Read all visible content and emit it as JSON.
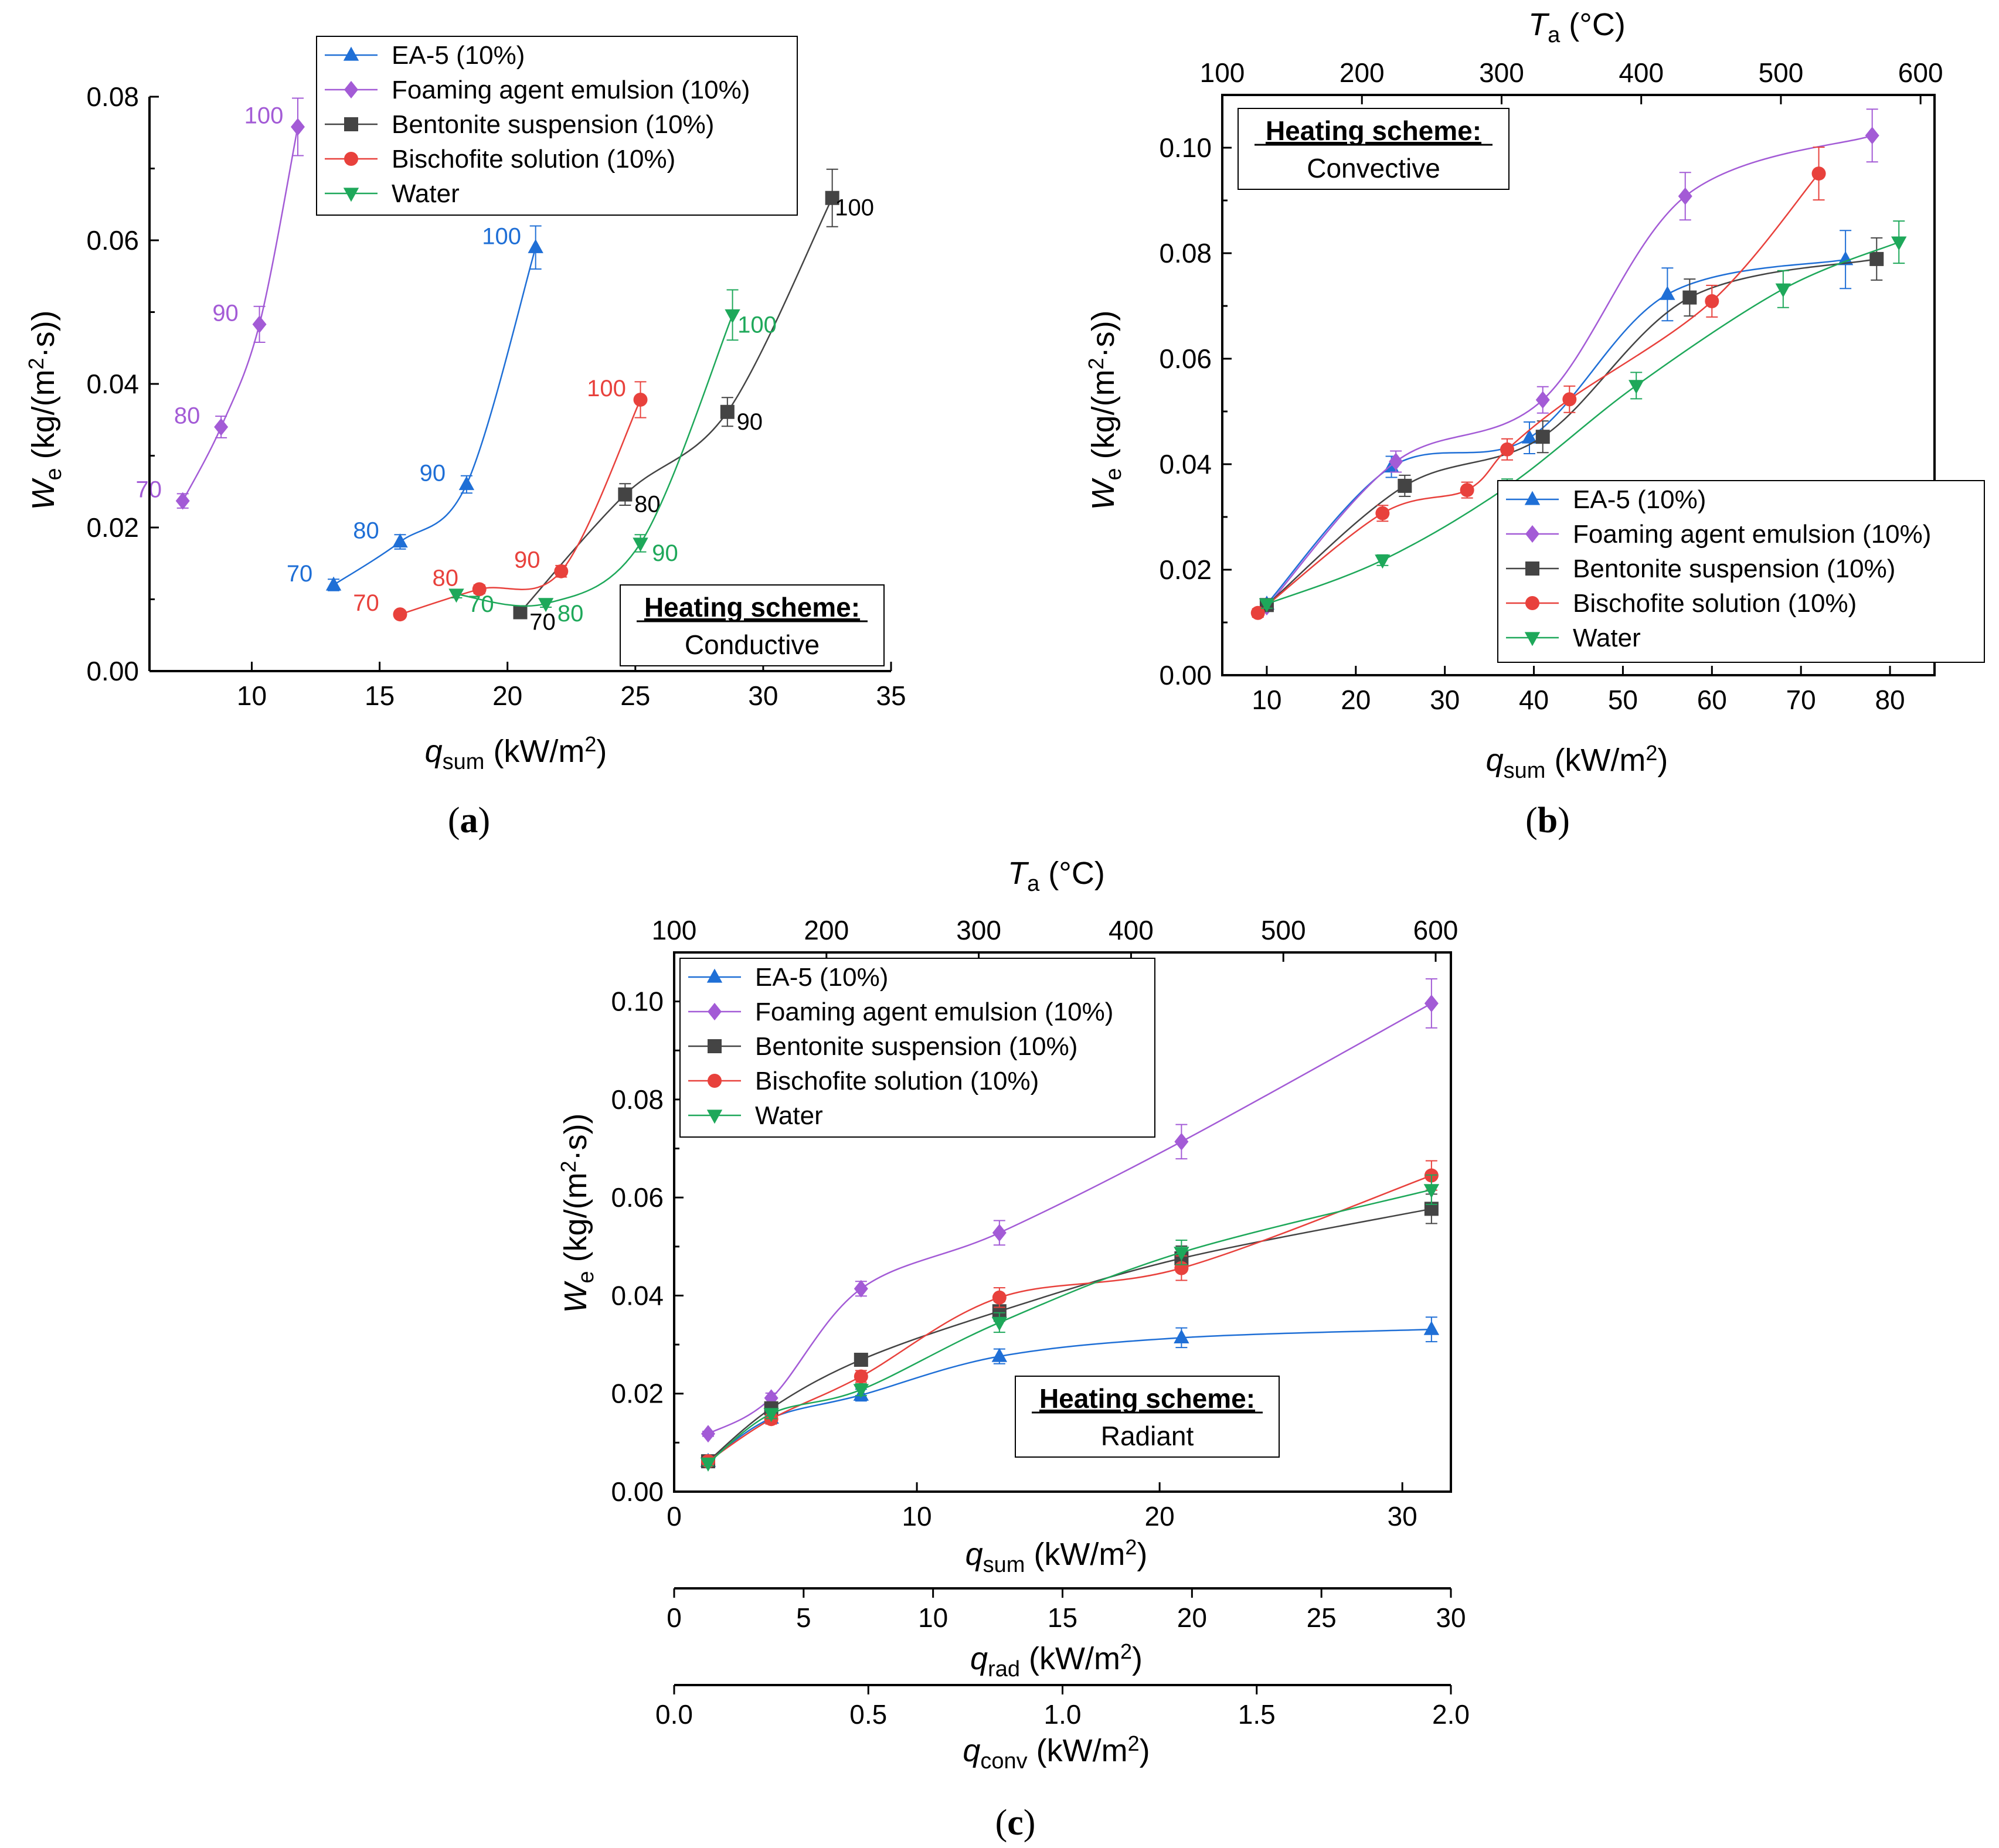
{
  "series_styles": [
    {
      "name": "EA-5 (10%)",
      "color": "#1f6fd6",
      "marker": "triangle-up"
    },
    {
      "name": "Foaming agent emulsion (10%)",
      "color": "#a35bd6",
      "marker": "diamond"
    },
    {
      "name": "Bentonite suspension (10%)",
      "color": "#444444",
      "marker": "square"
    },
    {
      "name": "Bischofite solution (10%)",
      "color": "#e8413c",
      "marker": "circle"
    },
    {
      "name": "Water",
      "color": "#1ea85a",
      "marker": "triangle-down"
    }
  ],
  "chart_data": [
    {
      "panel": "(a)",
      "type": "line",
      "heating_scheme_label": "Heating scheme:",
      "heating_scheme": "Conductive",
      "xlim": [
        6,
        35
      ],
      "ylim": [
        0,
        0.08
      ],
      "xticks": [
        "10",
        "15",
        "20",
        "25",
        "30",
        "35"
      ],
      "yticks": [
        "0.00",
        "0.02",
        "0.04",
        "0.06",
        "0.08"
      ],
      "grid": false,
      "legend_position": "top",
      "series": [
        {
          "name": "EA-5 (10%)",
          "x": [
            13.2,
            15.8,
            18.4,
            21.1
          ],
          "y": [
            0.012,
            0.018,
            0.026,
            0.059
          ],
          "err": [
            0.0008,
            0.001,
            0.0012,
            0.003
          ],
          "point_labels": [
            "70",
            "80",
            "90",
            "100"
          ]
        },
        {
          "name": "Foaming agent emulsion (10%)",
          "x": [
            7.3,
            8.8,
            10.3,
            11.8
          ],
          "y": [
            0.0237,
            0.034,
            0.0483,
            0.0758
          ],
          "err": [
            0.001,
            0.0015,
            0.0025,
            0.004
          ],
          "point_labels": [
            "70",
            "80",
            "90",
            "100"
          ]
        },
        {
          "name": "Bentonite suspension (10%)",
          "x": [
            20.5,
            24.6,
            28.6,
            32.7
          ],
          "y": [
            0.0082,
            0.0246,
            0.0361,
            0.0659
          ],
          "err": [
            0.0005,
            0.0015,
            0.002,
            0.004
          ],
          "point_labels": [
            "70",
            "80",
            "90",
            "100"
          ]
        },
        {
          "name": "Bischofite solution (10%)",
          "x": [
            15.8,
            18.9,
            22.1,
            25.2
          ],
          "y": [
            0.0079,
            0.0114,
            0.0139,
            0.0378
          ],
          "err": [
            0.0005,
            0.0006,
            0.0008,
            0.0025
          ],
          "point_labels": [
            "70",
            "80",
            "90",
            "100"
          ]
        },
        {
          "name": "Water",
          "x": [
            18.0,
            21.5,
            25.2,
            28.8
          ],
          "y": [
            0.0107,
            0.0094,
            0.0178,
            0.0496
          ],
          "err": [
            0.0005,
            0.0005,
            0.0012,
            0.0035
          ],
          "point_labels": [
            "70",
            "80",
            "90",
            "100"
          ]
        }
      ]
    },
    {
      "panel": "(b)",
      "type": "line",
      "heating_scheme_label": "Heating scheme:",
      "heating_scheme": "Convective",
      "xlim": [
        5,
        85
      ],
      "ylim": [
        0,
        0.11
      ],
      "top_xlim": [
        100,
        610
      ],
      "xticks": [
        "10",
        "20",
        "30",
        "40",
        "50",
        "60",
        "70",
        "80"
      ],
      "yticks": [
        "0.00",
        "0.02",
        "0.04",
        "0.06",
        "0.08",
        "0.10"
      ],
      "top_xticks": [
        "100",
        "200",
        "300",
        "400",
        "500",
        "600"
      ],
      "grid": false,
      "legend_position": "bottom-right",
      "series": [
        {
          "name": "EA-5 (10%)",
          "x": [
            10,
            24,
            39.5,
            55,
            75
          ],
          "y": [
            0.0135,
            0.0395,
            0.045,
            0.0722,
            0.0788
          ],
          "err": [
            0.0008,
            0.002,
            0.003,
            0.005,
            0.0055
          ]
        },
        {
          "name": "Foaming agent emulsion (10%)",
          "x": [
            10,
            24.5,
            41,
            57,
            78
          ],
          "y": [
            0.013,
            0.0405,
            0.0522,
            0.0908,
            0.1023
          ],
          "err": [
            0.0008,
            0.002,
            0.0025,
            0.0045,
            0.005
          ]
        },
        {
          "name": "Bentonite suspension (10%)",
          "x": [
            10,
            25.5,
            41,
            57.5,
            78.5
          ],
          "y": [
            0.0133,
            0.0359,
            0.0452,
            0.0716,
            0.0789
          ],
          "err": [
            0.0008,
            0.002,
            0.003,
            0.0035,
            0.004
          ]
        },
        {
          "name": "Bischofite solution (10%)",
          "x": [
            9,
            23,
            32.5,
            37,
            44,
            60,
            72
          ],
          "y": [
            0.0118,
            0.0307,
            0.0351,
            0.0428,
            0.0523,
            0.0709,
            0.0951
          ],
          "err": [
            0.0008,
            0.0015,
            0.0015,
            0.002,
            0.0025,
            0.003,
            0.005
          ]
        },
        {
          "name": "Water",
          "x": [
            10,
            23,
            37,
            51.5,
            68,
            81
          ],
          "y": [
            0.0135,
            0.0218,
            0.0357,
            0.0549,
            0.0732,
            0.0821
          ],
          "err": [
            0.0008,
            0.001,
            0.0015,
            0.0025,
            0.0035,
            0.004
          ]
        }
      ]
    },
    {
      "panel": "(c)",
      "type": "line",
      "heating_scheme_label": "Heating scheme:",
      "heating_scheme": "Radiant",
      "xlim": [
        0,
        32
      ],
      "ylim": [
        0,
        0.11
      ],
      "top_xlim": [
        100,
        610
      ],
      "xticks": [
        "0",
        "10",
        "20",
        "30"
      ],
      "yticks": [
        "0.00",
        "0.02",
        "0.04",
        "0.06",
        "0.08",
        "0.10"
      ],
      "top_xticks": [
        "100",
        "200",
        "300",
        "400",
        "500",
        "600"
      ],
      "qrad_xlim": [
        0,
        30
      ],
      "qrad_xticks": [
        "0",
        "5",
        "10",
        "15",
        "20",
        "25",
        "30"
      ],
      "qconv_xlim": [
        0,
        2
      ],
      "qconv_xticks": [
        "0.0",
        "0.5",
        "1.0",
        "1.5",
        "2.0"
      ],
      "grid": false,
      "legend_position": "top-left",
      "series": [
        {
          "name": "EA-5 (10%)",
          "x": [
            1.4,
            4.0,
            7.7,
            13.4,
            20.9,
            31.2
          ],
          "y": [
            0.0062,
            0.015,
            0.0197,
            0.0276,
            0.0314,
            0.0331
          ],
          "err": [
            0.0005,
            0.001,
            0.0012,
            0.0015,
            0.002,
            0.0025
          ]
        },
        {
          "name": "Foaming agent emulsion (10%)",
          "x": [
            1.4,
            4.0,
            7.7,
            13.4,
            20.9,
            31.2
          ],
          "y": [
            0.0118,
            0.0191,
            0.0414,
            0.0528,
            0.0714,
            0.0996
          ],
          "err": [
            0.0005,
            0.001,
            0.0015,
            0.0025,
            0.0035,
            0.005
          ]
        },
        {
          "name": "Bentonite suspension (10%)",
          "x": [
            1.4,
            4.0,
            7.7,
            13.4,
            20.9,
            31.2
          ],
          "y": [
            0.0062,
            0.017,
            0.0269,
            0.0368,
            0.0476,
            0.0577
          ],
          "err": [
            0.0005,
            0.001,
            0.0012,
            0.002,
            0.0025,
            0.003
          ]
        },
        {
          "name": "Bischofite solution (10%)",
          "x": [
            1.4,
            4.0,
            7.7,
            13.4,
            20.9,
            31.2
          ],
          "y": [
            0.0062,
            0.0148,
            0.0235,
            0.0396,
            0.0456,
            0.0645
          ],
          "err": [
            0.0005,
            0.001,
            0.0012,
            0.002,
            0.0025,
            0.003
          ]
        },
        {
          "name": "Water",
          "x": [
            1.4,
            4.0,
            7.7,
            13.4,
            20.9,
            31.2
          ],
          "y": [
            0.0058,
            0.0159,
            0.0208,
            0.0345,
            0.0488,
            0.0616
          ],
          "err": [
            0.0005,
            0.001,
            0.0012,
            0.002,
            0.0025,
            0.003
          ]
        }
      ]
    }
  ]
}
